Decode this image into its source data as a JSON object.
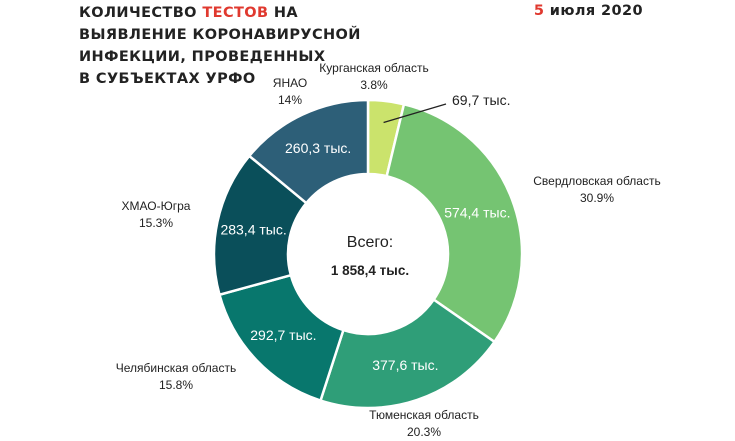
{
  "header": {
    "title_lines": [
      {
        "prefix": "Количество ",
        "accent": "тестов",
        "suffix": " на"
      },
      {
        "text": "выявление коронавирусной"
      },
      {
        "text": "инфекции, проведенных"
      },
      {
        "text": "в субъектах УрФО"
      }
    ],
    "date_day": "5",
    "date_rest": " июля 2020"
  },
  "chart_data": {
    "type": "donut",
    "center_label": "Всего:",
    "total": "1 858,4 тыс.",
    "categories": [
      "Курганская область",
      "Свердловская область",
      "Тюменская область",
      "Челябинская область",
      "ХМАО-Югра",
      "ЯНАО"
    ],
    "values": [
      69.7,
      574.4,
      377.6,
      292.7,
      283.4,
      260.3
    ],
    "value_labels": [
      "69,7 тыс.",
      "574,4 тыс.",
      "377,6 тыс.",
      "292,7 тыс.",
      "283,4 тыс.",
      "260,3 тыс."
    ],
    "percent_labels": [
      "3.8%",
      "30.9%",
      "20.3%",
      "15.8%",
      "15.3%",
      "14%"
    ],
    "colors": [
      "#cbe36c",
      "#75c472",
      "#2f9e78",
      "#08776d",
      "#0a4f5a",
      "#2d5f78"
    ],
    "accent_color": "#e0392f"
  }
}
